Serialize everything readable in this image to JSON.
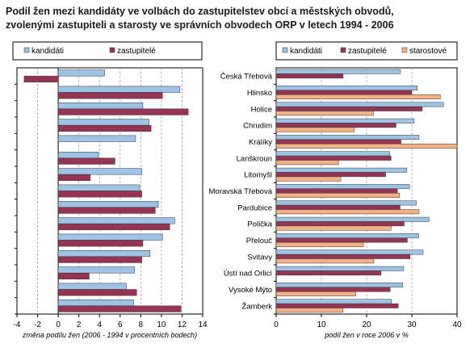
{
  "title": {
    "line1": "Podíl žen mezi kandidáty ve volbách do zastupitelstev obcí a městských obvodů,",
    "line2": "zvolenými zastupiteli a starosty ve správních obvodech ORP v letech 1994 - 2006"
  },
  "colors": {
    "kandidati": "#9DC3E6",
    "zastupitele": "#953553",
    "starostove": "#F4B183",
    "grid": "#999999",
    "axis": "#000000"
  },
  "chart_data": [
    {
      "type": "bar",
      "orientation": "horizontal",
      "xlabel": "změna podílu žen (2006 - 1994 v procentních bodech)",
      "xlim": [
        -4,
        14
      ],
      "xticks": [
        -4,
        -2,
        0,
        2,
        4,
        6,
        8,
        10,
        12,
        14
      ],
      "grid": true,
      "legend": "top",
      "categories": [
        "Česká Třebová",
        "Hlinsko",
        "Holice",
        "Chrudim",
        "Králíky",
        "Lanškroun",
        "Litomyšl",
        "Moravská Třebová",
        "Pardubice",
        "Polička",
        "Přelouč",
        "Svitavy",
        "Ústí nad Orlicí",
        "Vysoké Mýto",
        "Žamberk"
      ],
      "series": [
        {
          "name": "kandidáti",
          "color": "#9DC3E6",
          "values": [
            4.5,
            11.8,
            8.2,
            8.8,
            7.5,
            3.9,
            8.1,
            7.9,
            9.7,
            11.3,
            10.1,
            8.9,
            7.4,
            6.6,
            7.3
          ]
        },
        {
          "name": "zastupitelé",
          "color": "#953553",
          "values": [
            -3.3,
            10.1,
            12.6,
            9.0,
            0.0,
            5.5,
            3.1,
            8.1,
            9.4,
            10.8,
            8.2,
            8.1,
            3.0,
            7.6,
            11.9
          ]
        }
      ]
    },
    {
      "type": "bar",
      "orientation": "horizontal",
      "xlabel": "podíl žen v roce 2006 v %",
      "xlim": [
        0,
        40
      ],
      "xticks": [
        0,
        10,
        20,
        30,
        40
      ],
      "grid": true,
      "legend": "top",
      "categories": [
        "Česká Třebová",
        "Hlinsko",
        "Holice",
        "Chrudim",
        "Králíky",
        "Lanškroun",
        "Litomyšl",
        "Moravská Třebová",
        "Pardubice",
        "Polička",
        "Přelouč",
        "Svitavy",
        "Ústí nad Orlicí",
        "Vysoké Mýto",
        "Žamberk"
      ],
      "series": [
        {
          "name": "kandidáti",
          "color": "#9DC3E6",
          "values": [
            27.5,
            31.2,
            37.0,
            30.5,
            31.6,
            25.1,
            28.9,
            29.5,
            31.0,
            33.8,
            31.5,
            32.5,
            28.2,
            28.0,
            25.5
          ]
        },
        {
          "name": "zastupitelé",
          "color": "#953553",
          "values": [
            14.8,
            30.0,
            32.3,
            26.5,
            27.6,
            25.4,
            24.2,
            26.8,
            27.4,
            28.3,
            29.0,
            29.6,
            23.2,
            25.2,
            27.0
          ]
        },
        {
          "name": "starostové",
          "color": "#F4B183",
          "values": [
            0,
            36.3,
            21.5,
            17.3,
            40.0,
            13.8,
            14.3,
            27.3,
            31.6,
            25.4,
            19.3,
            21.6,
            0,
            17.6,
            14.8
          ]
        }
      ]
    }
  ]
}
